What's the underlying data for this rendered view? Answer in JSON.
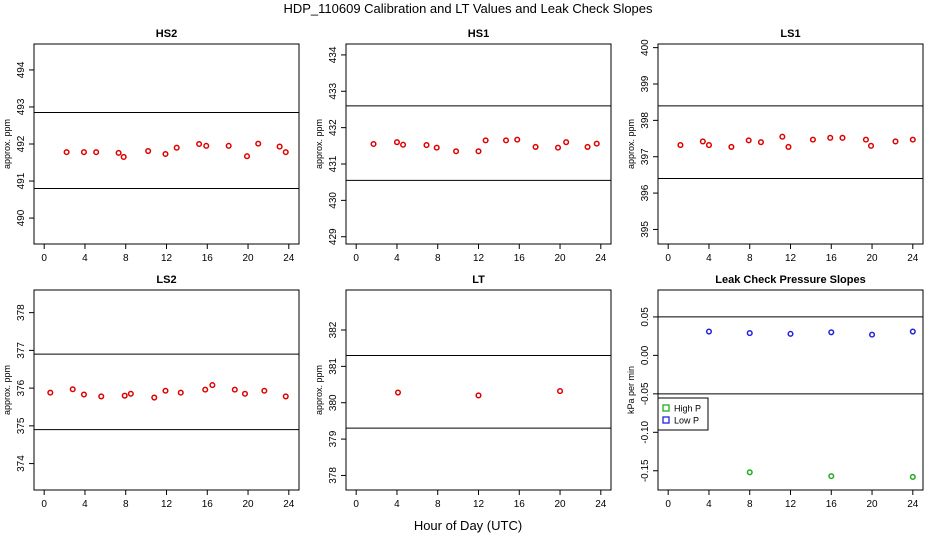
{
  "figure": {
    "title": "HDP_110609  Calibration and LT Values and Leak Check Slopes",
    "xlabel": "Hour of Day (UTC)"
  },
  "chart_data": [
    {
      "type": "scatter",
      "title": "HS2",
      "ylabel": "approx. ppm",
      "xlim": [
        -1,
        25
      ],
      "ylim": [
        489.3,
        494.7
      ],
      "xticks": [
        0,
        4,
        8,
        12,
        16,
        20,
        24
      ],
      "yticks": [
        490,
        491,
        492,
        493,
        494
      ],
      "hlines": [
        490.8,
        492.85
      ],
      "series": [
        {
          "color": "#dd0000",
          "x": [
            2.2,
            3.9,
            5.1,
            7.3,
            7.8,
            10.2,
            11.9,
            13.0,
            15.2,
            15.9,
            18.1,
            19.9,
            21.0,
            23.1,
            23.7
          ],
          "y": [
            491.78,
            491.78,
            491.78,
            491.76,
            491.65,
            491.81,
            491.73,
            491.9,
            492.0,
            491.95,
            491.95,
            491.67,
            492.01,
            491.93,
            491.78
          ]
        }
      ]
    },
    {
      "type": "scatter",
      "title": "HS1",
      "ylabel": "approx. ppm",
      "xlim": [
        -1,
        25
      ],
      "ylim": [
        428.8,
        434.3
      ],
      "xticks": [
        0,
        4,
        8,
        12,
        16,
        20,
        24
      ],
      "yticks": [
        429,
        430,
        431,
        432,
        433,
        434
      ],
      "hlines": [
        430.55,
        432.6
      ],
      "series": [
        {
          "color": "#dd0000",
          "x": [
            1.7,
            4.0,
            4.6,
            6.9,
            7.9,
            9.8,
            12.0,
            12.7,
            14.7,
            15.8,
            17.6,
            19.8,
            20.6,
            22.7,
            23.6
          ],
          "y": [
            431.55,
            431.6,
            431.53,
            431.52,
            431.45,
            431.35,
            431.35,
            431.65,
            431.65,
            431.67,
            431.47,
            431.45,
            431.6,
            431.47,
            431.56
          ]
        }
      ]
    },
    {
      "type": "scatter",
      "title": "LS1",
      "ylabel": "approx. ppm",
      "xlim": [
        -1,
        25
      ],
      "ylim": [
        394.6,
        400.1
      ],
      "xticks": [
        0,
        4,
        8,
        12,
        16,
        20,
        24
      ],
      "yticks": [
        395,
        396,
        397,
        398,
        399,
        400
      ],
      "hlines": [
        396.4,
        398.4
      ],
      "series": [
        {
          "color": "#dd0000",
          "x": [
            1.2,
            3.4,
            4.0,
            6.2,
            7.9,
            9.1,
            11.2,
            11.8,
            14.2,
            15.9,
            17.1,
            19.4,
            19.9,
            22.3,
            24.0
          ],
          "y": [
            397.32,
            397.42,
            397.32,
            397.27,
            397.45,
            397.4,
            397.55,
            397.27,
            397.47,
            397.52,
            397.52,
            397.47,
            397.3,
            397.42,
            397.47
          ]
        }
      ]
    },
    {
      "type": "scatter",
      "title": "LS2",
      "ylabel": "approx. ppm",
      "xlim": [
        -1,
        25
      ],
      "ylim": [
        373.3,
        378.6
      ],
      "xticks": [
        0,
        4,
        8,
        12,
        16,
        20,
        24
      ],
      "yticks": [
        374,
        375,
        376,
        377,
        378
      ],
      "hlines": [
        374.9,
        376.9
      ],
      "series": [
        {
          "color": "#dd0000",
          "x": [
            0.6,
            2.8,
            3.9,
            5.6,
            7.9,
            8.5,
            10.8,
            11.9,
            13.4,
            15.8,
            16.5,
            18.7,
            19.7,
            21.6,
            23.7
          ],
          "y": [
            375.88,
            375.97,
            375.83,
            375.78,
            375.8,
            375.85,
            375.75,
            375.93,
            375.88,
            375.96,
            376.08,
            375.96,
            375.85,
            375.93,
            375.78
          ]
        }
      ]
    },
    {
      "type": "scatter",
      "title": "LT",
      "ylabel": "approx. ppm",
      "xlim": [
        -1,
        25
      ],
      "ylim": [
        377.6,
        383.1
      ],
      "xticks": [
        0,
        4,
        8,
        12,
        16,
        20,
        24
      ],
      "yticks": [
        378,
        379,
        380,
        381,
        382
      ],
      "hlines": [
        379.3,
        381.3
      ],
      "series": [
        {
          "color": "#dd0000",
          "x": [
            4.1,
            12.0,
            20.0
          ],
          "y": [
            380.28,
            380.2,
            380.32
          ]
        }
      ]
    },
    {
      "type": "scatter",
      "title": "Leak Check Pressure Slopes",
      "ylabel": "kPa per min",
      "xlim": [
        -1,
        25
      ],
      "ylim": [
        -0.175,
        0.085
      ],
      "xticks": [
        0,
        4,
        8,
        12,
        16,
        20,
        24
      ],
      "yticks": [
        -0.15,
        -0.1,
        -0.05,
        0.0,
        0.05
      ],
      "ytick_labels": [
        "-0.15",
        "-0.10",
        "-0.05",
        "0.00",
        "0.05"
      ],
      "hlines": [
        -0.05,
        0.05
      ],
      "legend": {
        "placement": "left",
        "entries": [
          "High P",
          "Low P"
        ]
      },
      "series": [
        {
          "name": "High P",
          "color": "#22aa22",
          "x": [
            8,
            16,
            24
          ],
          "y": [
            -0.152,
            -0.157,
            -0.158
          ]
        },
        {
          "name": "Low P",
          "color": "#2222dd",
          "x": [
            4,
            8,
            12,
            16,
            20,
            24
          ],
          "y": [
            0.031,
            0.029,
            0.028,
            0.03,
            0.027,
            0.031
          ]
        }
      ]
    }
  ]
}
